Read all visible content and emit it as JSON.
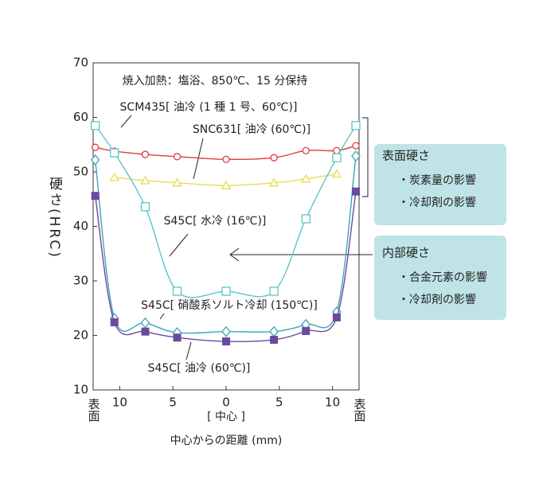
{
  "chart_data": {
    "type": "line",
    "annotations": [
      "焼入加熱：塩浴、850℃、15 分保持"
    ],
    "y_label": "硬さ(HRC)",
    "x_label_center": "[ 中心 ]",
    "x_label": "中心からの距離 (mm)",
    "xlim": [
      -12.5,
      12.5
    ],
    "xticks": [
      {
        "value": -12.5,
        "label": "表面"
      },
      {
        "value": -10,
        "label": "10"
      },
      {
        "value": -5,
        "label": "5"
      },
      0,
      5,
      10,
      {
        "value": 12.5,
        "label": "表面"
      }
    ],
    "ylim": [
      10,
      70
    ],
    "yticks": [
      10,
      20,
      30,
      40,
      50,
      60,
      70
    ],
    "series": [
      {
        "name": "SCM435[ 油冷 (1 種 1 号、60℃)]",
        "color": "#e03a44",
        "marker": "circle",
        "x": [
          -12.3,
          -10.5,
          -7.6,
          -4.6,
          0,
          4.5,
          7.5,
          10.4,
          12.2
        ],
        "values": [
          54.5,
          53.8,
          53.2,
          52.8,
          52.3,
          52.6,
          53.9,
          53.9,
          54.8
        ]
      },
      {
        "name": "SNC631[ 油冷 (60℃)]",
        "color": "#e6dc50",
        "marker": "triangle",
        "x": [
          -10.5,
          -7.6,
          -4.6,
          0,
          4.5,
          7.5,
          10.4
        ],
        "values": [
          49.0,
          48.4,
          48.0,
          47.5,
          48.0,
          48.7,
          49.6
        ]
      },
      {
        "name": "S45C[ 水冷 (16℃)]",
        "color": "#5cc6c6",
        "marker": "square",
        "x": [
          -12.3,
          -10.5,
          -7.6,
          -4.6,
          0,
          4.5,
          7.5,
          10.4,
          12.2
        ],
        "values": [
          58.5,
          53.5,
          43.6,
          28.1,
          28.1,
          28.1,
          41.4,
          52.6,
          58.5
        ]
      },
      {
        "name": "S45C[ 硝酸系ソルト冷却 (150℃)]",
        "color": "#3aa6b4",
        "marker": "diamond",
        "x": [
          -12.3,
          -10.5,
          -7.6,
          -4.6,
          0,
          4.5,
          7.5,
          10.4,
          12.2
        ],
        "values": [
          52.2,
          23.1,
          22.3,
          20.5,
          20.7,
          20.7,
          22.0,
          24.3,
          52.9
        ]
      },
      {
        "name": "S45C[ 油冷 (60℃)]",
        "color": "#6a4a9e",
        "marker": "filled-square",
        "x": [
          -12.3,
          -10.5,
          -7.6,
          -4.6,
          0,
          4.5,
          7.5,
          10.4,
          12.2
        ],
        "values": [
          45.6,
          22.4,
          20.7,
          19.6,
          18.9,
          19.2,
          20.8,
          23.3,
          46.4
        ]
      }
    ],
    "boxes": [
      {
        "title": "表面硬さ",
        "items": [
          "・炭素量の影響",
          "・冷却剤の影響"
        ]
      },
      {
        "title": "内部硬さ",
        "items": [
          "・合金元素の影響",
          "・冷却剤の影響"
        ]
      }
    ]
  }
}
